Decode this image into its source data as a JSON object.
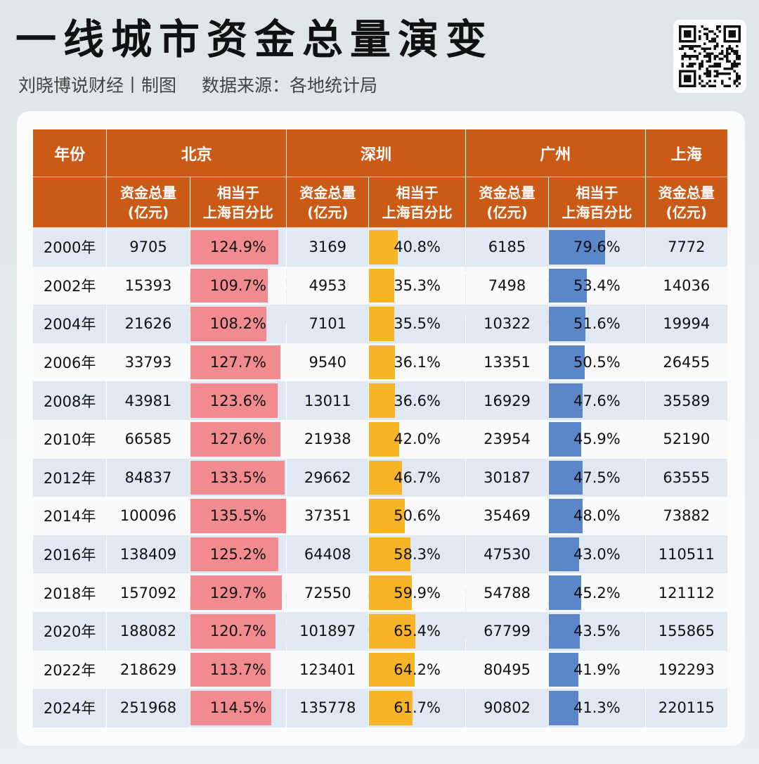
{
  "title": "一线城市资金总量演变",
  "subtitle": {
    "author": "刘晓博说财经丨制图",
    "source": "数据来源：各地统计局"
  },
  "watermark": "刘晓博说财经",
  "colors": {
    "header": "#cc5a17",
    "beijing_bar": "#f28b8f",
    "shenzhen_bar": "#f8b427",
    "guangzhou_bar": "#5b86c9"
  },
  "table": {
    "year_header": "年份",
    "cities": [
      "北京",
      "深圳",
      "广州",
      "上海"
    ],
    "sub_total": "资金总量",
    "sub_total_unit": "(亿元)",
    "sub_pct_1": "相当于",
    "sub_pct_2": "上海百分比"
  },
  "chart_data": {
    "type": "table",
    "title": "一线城市资金总量演变",
    "columns": [
      "年份",
      "北京 资金总量(亿元)",
      "北京 相当于上海百分比",
      "深圳 资金总量(亿元)",
      "深圳 相当于上海百分比",
      "广州 资金总量(亿元)",
      "广州 相当于上海百分比",
      "上海 资金总量(亿元)"
    ],
    "rows": [
      {
        "year": "2000年",
        "bj": "9705",
        "bj_pct": "124.9%",
        "sz": "3169",
        "sz_pct": "40.8%",
        "gz": "6185",
        "gz_pct": "79.6%",
        "sh": "7772"
      },
      {
        "year": "2002年",
        "bj": "15393",
        "bj_pct": "109.7%",
        "sz": "4953",
        "sz_pct": "35.3%",
        "gz": "7498",
        "gz_pct": "53.4%",
        "sh": "14036"
      },
      {
        "year": "2004年",
        "bj": "21626",
        "bj_pct": "108.2%",
        "sz": "7101",
        "sz_pct": "35.5%",
        "gz": "10322",
        "gz_pct": "51.6%",
        "sh": "19994"
      },
      {
        "year": "2006年",
        "bj": "33793",
        "bj_pct": "127.7%",
        "sz": "9540",
        "sz_pct": "36.1%",
        "gz": "13351",
        "gz_pct": "50.5%",
        "sh": "26455"
      },
      {
        "year": "2008年",
        "bj": "43981",
        "bj_pct": "123.6%",
        "sz": "13011",
        "sz_pct": "36.6%",
        "gz": "16929",
        "gz_pct": "47.6%",
        "sh": "35589"
      },
      {
        "year": "2010年",
        "bj": "66585",
        "bj_pct": "127.6%",
        "sz": "21938",
        "sz_pct": "42.0%",
        "gz": "23954",
        "gz_pct": "45.9%",
        "sh": "52190"
      },
      {
        "year": "2012年",
        "bj": "84837",
        "bj_pct": "133.5%",
        "sz": "29662",
        "sz_pct": "46.7%",
        "gz": "30187",
        "gz_pct": "47.5%",
        "sh": "63555"
      },
      {
        "year": "2014年",
        "bj": "100096",
        "bj_pct": "135.5%",
        "sz": "37351",
        "sz_pct": "50.6%",
        "gz": "35469",
        "gz_pct": "48.0%",
        "sh": "73882"
      },
      {
        "year": "2016年",
        "bj": "138409",
        "bj_pct": "125.2%",
        "sz": "64408",
        "sz_pct": "58.3%",
        "gz": "47530",
        "gz_pct": "43.0%",
        "sh": "110511"
      },
      {
        "year": "2018年",
        "bj": "157092",
        "bj_pct": "129.7%",
        "sz": "72550",
        "sz_pct": "59.9%",
        "gz": "54788",
        "gz_pct": "45.2%",
        "sh": "121112"
      },
      {
        "year": "2020年",
        "bj": "188082",
        "bj_pct": "120.7%",
        "sz": "101897",
        "sz_pct": "65.4%",
        "gz": "67799",
        "gz_pct": "43.5%",
        "sh": "155865"
      },
      {
        "year": "2022年",
        "bj": "218629",
        "bj_pct": "113.7%",
        "sz": "123401",
        "sz_pct": "64.2%",
        "gz": "80495",
        "gz_pct": "41.9%",
        "sh": "192293"
      },
      {
        "year": "2024年",
        "bj": "251968",
        "bj_pct": "114.5%",
        "sz": "135778",
        "sz_pct": "61.7%",
        "gz": "90802",
        "gz_pct": "41.3%",
        "sh": "220115"
      }
    ]
  }
}
